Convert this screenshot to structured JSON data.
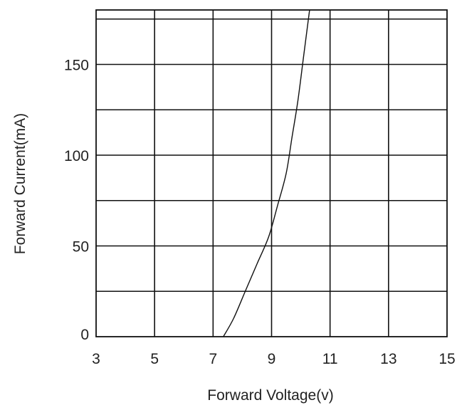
{
  "chart_data": {
    "type": "line",
    "title": "",
    "xlabel": "Forward Voltage(v)",
    "ylabel": "Forward Current(mA)",
    "xlim": [
      3,
      15
    ],
    "ylim": [
      0,
      180
    ],
    "xticks": [
      3,
      5,
      7,
      9,
      11,
      13,
      15
    ],
    "xtick_labels": [
      "3",
      "5",
      "7",
      "9",
      "11",
      "13",
      "15"
    ],
    "yticks": [
      0,
      50,
      100,
      150
    ],
    "ytick_labels": [
      "0",
      "50",
      "100",
      "150"
    ],
    "grid": true,
    "series": [
      {
        "x": [
          7.35,
          7.7,
          8.1,
          8.5,
          8.9,
          9.2,
          9.5,
          9.7,
          9.9,
          10.1,
          10.3
        ],
        "y": [
          0,
          10,
          25,
          40,
          55,
          72,
          90,
          110,
          130,
          155,
          182
        ]
      }
    ]
  },
  "colors": {
    "line": "#111111",
    "grid": "#111111",
    "background": "#ffffff",
    "text": "#222222"
  }
}
